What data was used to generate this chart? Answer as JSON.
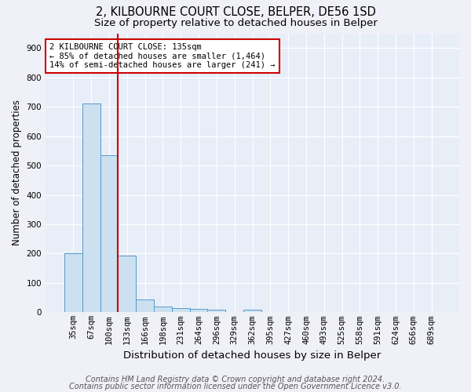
{
  "title": "2, KILBOURNE COURT CLOSE, BELPER, DE56 1SD",
  "subtitle": "Size of property relative to detached houses in Belper",
  "xlabel": "Distribution of detached houses by size in Belper",
  "ylabel": "Number of detached properties",
  "categories": [
    "35sqm",
    "67sqm",
    "100sqm",
    "133sqm",
    "166sqm",
    "198sqm",
    "231sqm",
    "264sqm",
    "296sqm",
    "329sqm",
    "362sqm",
    "395sqm",
    "427sqm",
    "460sqm",
    "493sqm",
    "525sqm",
    "558sqm",
    "591sqm",
    "624sqm",
    "656sqm",
    "689sqm"
  ],
  "values": [
    200,
    710,
    535,
    193,
    45,
    20,
    15,
    13,
    9,
    0,
    8,
    0,
    0,
    0,
    0,
    0,
    0,
    0,
    0,
    0,
    0
  ],
  "bar_color": "#cce0f0",
  "bar_edgecolor": "#5599cc",
  "highlight_bar_index": 3,
  "highlight_line_color": "#cc0000",
  "ylim": [
    0,
    950
  ],
  "yticks": [
    0,
    100,
    200,
    300,
    400,
    500,
    600,
    700,
    800,
    900
  ],
  "annotation_text": "2 KILBOURNE COURT CLOSE: 135sqm\n← 85% of detached houses are smaller (1,464)\n14% of semi-detached houses are larger (241) →",
  "annotation_box_color": "#ffffff",
  "annotation_box_edgecolor": "#cc0000",
  "footnote1": "Contains HM Land Registry data © Crown copyright and database right 2024.",
  "footnote2": "Contains public sector information licensed under the Open Government Licence v3.0.",
  "background_color": "#e8eef8",
  "grid_color": "#ffffff",
  "fig_background": "#f0f0f8",
  "title_fontsize": 10.5,
  "subtitle_fontsize": 9.5,
  "xlabel_fontsize": 9.5,
  "ylabel_fontsize": 8.5,
  "tick_fontsize": 7.5,
  "annotation_fontsize": 7.5,
  "footnote_fontsize": 7
}
